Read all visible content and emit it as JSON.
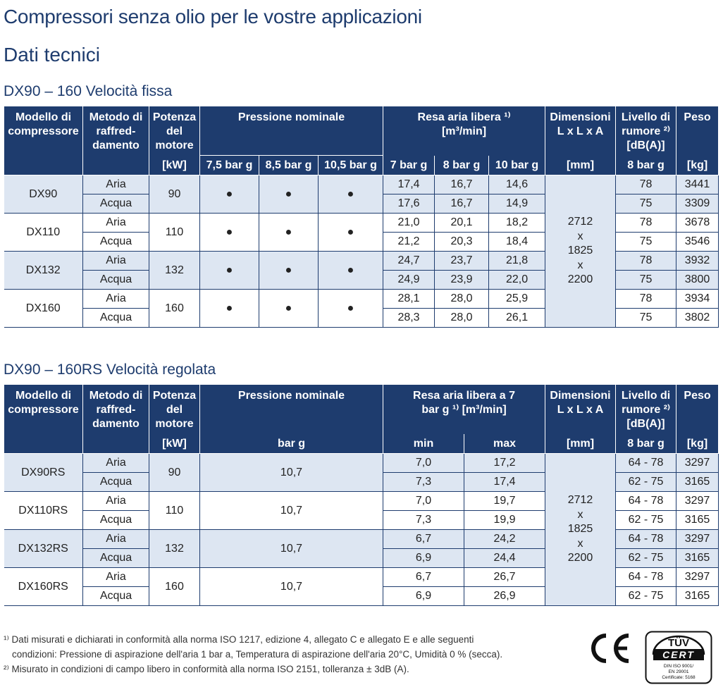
{
  "title": "Compressori senza olio per le vostre applicazioni",
  "subtitle": "Dati tecnici",
  "table1": {
    "heading": "DX90 – 160 Velocità fissa",
    "h_model": "Modello di compressore",
    "h_cooling": "Metodo di raffred-damento",
    "h_power": "Potenza del motore",
    "h_power_unit": "[kW]",
    "h_pressure": "Pressione nominale",
    "h_p1": "7,5 bar g",
    "h_p2": "8,5 bar g",
    "h_p3": "10,5 bar g",
    "h_fad": "Resa aria libera ¹⁾",
    "h_fad_unit_top": "[m³/min]",
    "h_f1": "7 bar g",
    "h_f2": "8 bar g",
    "h_f3": "10 bar g",
    "h_dim": "Dimensioni L x L x A",
    "h_dim_unit": "[mm]",
    "h_noise": "Livello di rumore ²⁾ [dB(A)]",
    "h_noise_unit": "8 bar g",
    "h_weight": "Peso",
    "h_weight_unit": "[kg]",
    "dot": "●",
    "dims": [
      "2712",
      "x",
      "1825",
      "x",
      "2200"
    ],
    "groups": [
      {
        "model": "DX90",
        "power": "90",
        "rows": [
          {
            "cooling": "Aria",
            "f1": "17,4",
            "f2": "16,7",
            "f3": "14,6",
            "noise": "78",
            "weight": "3441"
          },
          {
            "cooling": "Acqua",
            "f1": "17,6",
            "f2": "16,7",
            "f3": "14,9",
            "noise": "75",
            "weight": "3309"
          }
        ]
      },
      {
        "model": "DX110",
        "power": "110",
        "rows": [
          {
            "cooling": "Aria",
            "f1": "21,0",
            "f2": "20,1",
            "f3": "18,2",
            "noise": "78",
            "weight": "3678"
          },
          {
            "cooling": "Acqua",
            "f1": "21,2",
            "f2": "20,3",
            "f3": "18,4",
            "noise": "75",
            "weight": "3546"
          }
        ]
      },
      {
        "model": "DX132",
        "power": "132",
        "rows": [
          {
            "cooling": "Aria",
            "f1": "24,7",
            "f2": "23,7",
            "f3": "21,8",
            "noise": "78",
            "weight": "3932"
          },
          {
            "cooling": "Acqua",
            "f1": "24,9",
            "f2": "23,9",
            "f3": "22,0",
            "noise": "75",
            "weight": "3800"
          }
        ]
      },
      {
        "model": "DX160",
        "power": "160",
        "rows": [
          {
            "cooling": "Aria",
            "f1": "28,1",
            "f2": "28,0",
            "f3": "25,9",
            "noise": "78",
            "weight": "3934"
          },
          {
            "cooling": "Acqua",
            "f1": "28,3",
            "f2": "28,0",
            "f3": "26,1",
            "noise": "75",
            "weight": "3802"
          }
        ]
      }
    ]
  },
  "table2": {
    "heading": "DX90 – 160RS Velocità regolata",
    "h_model": "Modello di compressore",
    "h_cooling": "Metodo di raffred-damento",
    "h_power": "Potenza del motore",
    "h_power_unit": "[kW]",
    "h_pressure": "Pressione nominale",
    "h_pressure_unit": "bar g",
    "h_fad": "Resa aria libera a 7 bar g ¹⁾ [m³/min]",
    "h_min": "min",
    "h_max": "max",
    "h_dim": "Dimensioni L x L x A",
    "h_dim_unit": "[mm]",
    "h_noise": "Livello di rumore ²⁾ [dB(A)]",
    "h_noise_unit": "8 bar g",
    "h_weight": "Peso",
    "h_weight_unit": "[kg]",
    "dims": [
      "2712",
      "x",
      "1825",
      "x",
      "2200"
    ],
    "groups": [
      {
        "model": "DX90RS",
        "power": "90",
        "pressure": "10,7",
        "rows": [
          {
            "cooling": "Aria",
            "min": "7,0",
            "max": "17,2",
            "noise": "64 - 78",
            "weight": "3297"
          },
          {
            "cooling": "Acqua",
            "min": "7,3",
            "max": "17,4",
            "noise": "62 - 75",
            "weight": "3165"
          }
        ]
      },
      {
        "model": "DX110RS",
        "power": "110",
        "pressure": "10,7",
        "rows": [
          {
            "cooling": "Aria",
            "min": "7,0",
            "max": "19,7",
            "noise": "64 - 78",
            "weight": "3297"
          },
          {
            "cooling": "Acqua",
            "min": "7,3",
            "max": "19,9",
            "noise": "62 - 75",
            "weight": "3165"
          }
        ]
      },
      {
        "model": "DX132RS",
        "power": "132",
        "pressure": "10,7",
        "rows": [
          {
            "cooling": "Aria",
            "min": "6,7",
            "max": "24,2",
            "noise": "64 - 78",
            "weight": "3297"
          },
          {
            "cooling": "Acqua",
            "min": "6,9",
            "max": "24,4",
            "noise": "62 - 75",
            "weight": "3165"
          }
        ]
      },
      {
        "model": "DX160RS",
        "power": "160",
        "pressure": "10,7",
        "rows": [
          {
            "cooling": "Aria",
            "min": "6,7",
            "max": "26,7",
            "noise": "64 - 78",
            "weight": "3297"
          },
          {
            "cooling": "Acqua",
            "min": "6,9",
            "max": "26,9",
            "noise": "62 - 75",
            "weight": "3165"
          }
        ]
      }
    ]
  },
  "footnotes": {
    "n1_line1": "¹⁾ Dati misurati e dichiarati in conformità alla norma ISO 1217, edizione 4, allegato C e allegato E e alle seguenti",
    "n1_line2": "condizioni: Pressione di aspirazione dell'aria 1 bar a, Temperatura di aspirazione dell'aria 20°C, Umidità 0 % (secca).",
    "n2": "²⁾ Misurato in condizioni di campo libero in conformità alla norma ISO 2151, tolleranza ± 3dB (A)."
  },
  "certs": {
    "ce": "CE",
    "tuv_top": "TÜV",
    "tuv_cert": "CERT",
    "tuv_l1": "DIN ISO 9001/",
    "tuv_l2": "EN 29001",
    "tuv_l3": "Certificate: 5168"
  }
}
